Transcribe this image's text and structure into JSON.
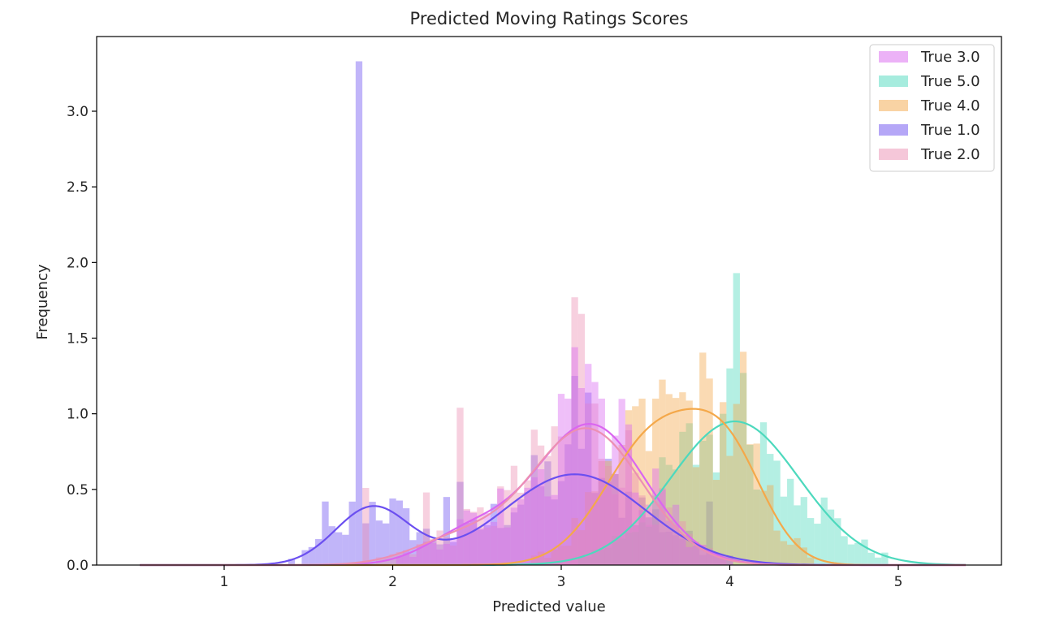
{
  "chart_data": {
    "type": "histogram",
    "title": "Predicted Moving Ratings Scores",
    "xlabel": "Predicted value",
    "ylabel": "Frequency",
    "xlim": [
      0.3,
      5.6
    ],
    "ylim": [
      0,
      3.4
    ],
    "xticks": [
      1,
      2,
      3,
      4,
      5
    ],
    "yticks": [
      0.0,
      0.5,
      1.0,
      1.5,
      2.0,
      2.5,
      3.0
    ],
    "grid": false,
    "legend_position": "top-right",
    "bin_width": 0.04,
    "series": [
      {
        "name": "True 3.0",
        "color": "#da66f0",
        "kde": {
          "peaks": [
            [
              3.17,
              0.93
            ],
            [
              2.45,
              0.2
            ]
          ],
          "sigmas": [
            0.33,
            0.25
          ],
          "peak_value": 0.93
        },
        "spikes": [
          [
            3.09,
            1.44
          ],
          [
            3.13,
            1.17
          ],
          [
            3.17,
            1.33
          ],
          [
            3.21,
            1.21
          ],
          [
            3.05,
            1.1
          ],
          [
            3.25,
            1.1
          ]
        ]
      },
      {
        "name": "True 5.0",
        "color": "#4dd9bd",
        "kde": {
          "peaks": [
            [
              4.03,
              0.95
            ]
          ],
          "sigmas": [
            0.38
          ],
          "peak_value": 0.95
        },
        "spikes": [
          [
            4.06,
            1.93
          ],
          [
            4.02,
            1.3
          ],
          [
            3.97,
            1.0
          ],
          [
            4.27,
            0.69
          ],
          [
            4.35,
            0.57
          ],
          [
            4.43,
            0.45
          ]
        ]
      },
      {
        "name": "True 4.0",
        "color": "#f4a84a",
        "kde": {
          "peaks": [
            [
              3.57,
              0.87
            ],
            [
              4.0,
              0.58
            ]
          ],
          "sigmas": [
            0.3,
            0.22
          ],
          "peak_value": 0.87
        },
        "spikes": [
          [
            4.07,
            1.41
          ],
          [
            3.62,
            1.13
          ],
          [
            3.57,
            1.1
          ],
          [
            3.47,
            1.1
          ],
          [
            3.42,
            1.05
          ]
        ]
      },
      {
        "name": "True 1.0",
        "color": "#6b4ff0",
        "kde": {
          "peaks": [
            [
              1.88,
              0.38
            ],
            [
              3.08,
              0.6
            ]
          ],
          "sigmas": [
            0.22,
            0.42
          ],
          "peak_value": 0.6
        },
        "spikes": [
          [
            1.81,
            3.33
          ],
          [
            1.61,
            0.42
          ],
          [
            1.73,
            0.2
          ],
          [
            2.33,
            0.45
          ],
          [
            2.41,
            0.55
          ],
          [
            3.09,
            1.25
          ],
          [
            3.15,
            1.14
          ],
          [
            3.89,
            0.42
          ]
        ]
      },
      {
        "name": "True 2.0",
        "color": "#ec8fb3",
        "kde": {
          "peaks": [
            [
              3.15,
              0.9
            ],
            [
              2.4,
              0.17
            ]
          ],
          "sigmas": [
            0.33,
            0.28
          ],
          "peak_value": 0.9
        },
        "spikes": [
          [
            3.07,
            1.77
          ],
          [
            3.1,
            1.66
          ],
          [
            2.41,
            1.04
          ],
          [
            1.85,
            0.51
          ],
          [
            2.21,
            0.48
          ],
          [
            2.63,
            0.52
          ]
        ]
      }
    ]
  }
}
